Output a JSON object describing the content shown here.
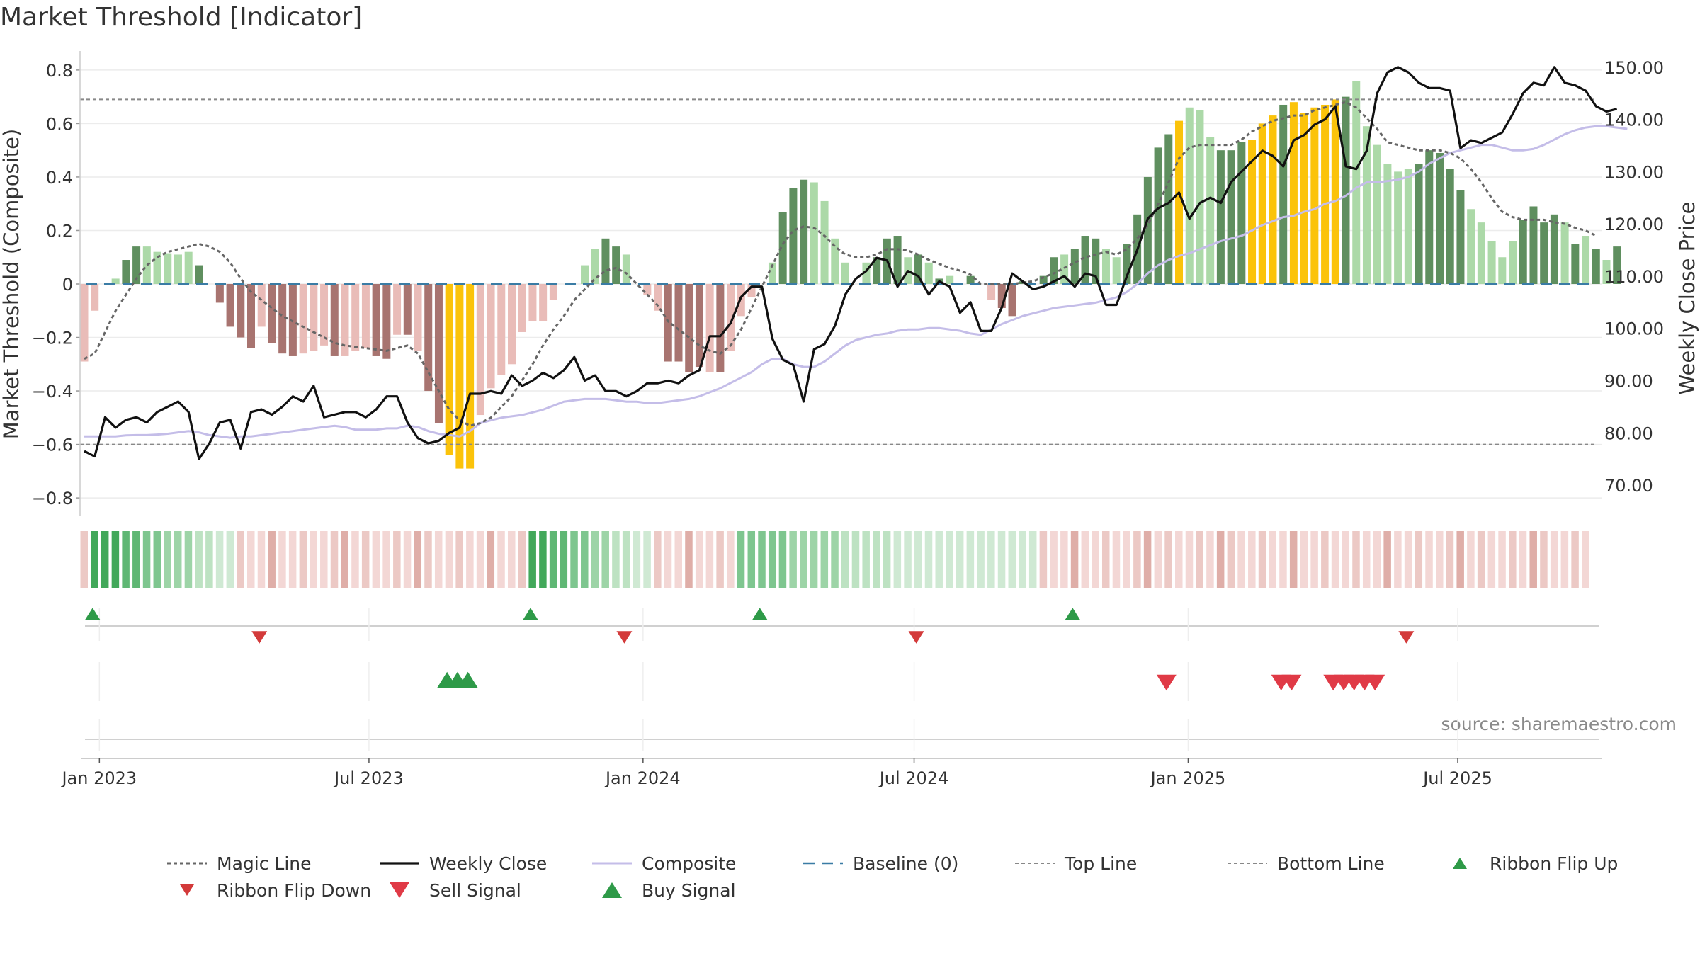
{
  "title": "Market Threshold [Indicator]",
  "source": "source: sharemaestro.com",
  "colors": {
    "bar_pos_strong": "#5f8f5f",
    "bar_pos_weak": "#acd9a8",
    "bar_neg_strong": "#a87470",
    "bar_neg_weak": "#e9bcb8",
    "bar_highlight": "#fbc30a",
    "weekly_close": "#111111",
    "composite": "#c4bde8",
    "magic_line": "#666666",
    "baseline": "#3a7ca5",
    "threshold_line": "#888888",
    "signal_up": "#2e9a48",
    "signal_down": "#d4343f"
  },
  "chart_data": {
    "type": "bar",
    "left_axis": {
      "label": "Market Threshold (Composite)",
      "ylim": [
        -0.85,
        0.85
      ],
      "ticks": [
        "0.8",
        "0.6",
        "0.4",
        "0.2",
        "0",
        "−0.2",
        "−0.4",
        "−0.6",
        "−0.8"
      ]
    },
    "right_axis": {
      "label": "Weekly Close Price",
      "ylim": [
        65,
        152
      ],
      "ticks": [
        "150.00",
        "140.00",
        "130.00",
        "120.00",
        "110.00",
        "100.00",
        "90.00",
        "80.00",
        "70.00"
      ]
    },
    "x_axis": {
      "range": [
        "2022-12-19",
        "2025-10-06"
      ],
      "ticks": [
        {
          "label": "Jan 2023",
          "date": "2023-01-01"
        },
        {
          "label": "Jul 2023",
          "date": "2023-07-01"
        },
        {
          "label": "Jan 2024",
          "date": "2024-01-01"
        },
        {
          "label": "Jul 2024",
          "date": "2024-07-01"
        },
        {
          "label": "Jan 2025",
          "date": "2025-01-01"
        },
        {
          "label": "Jul 2025",
          "date": "2025-07-01"
        }
      ]
    },
    "reference_lines": {
      "top_line": 0.69,
      "bottom_line": -0.6,
      "baseline": 0
    },
    "start_week": "2022-12-19",
    "composite_bars": [
      -0.29,
      -0.1,
      0.0,
      0.02,
      0.09,
      0.14,
      0.14,
      0.12,
      0.115,
      0.11,
      0.12,
      0.07,
      0.0,
      -0.07,
      -0.16,
      -0.2,
      -0.24,
      -0.16,
      -0.22,
      -0.26,
      -0.27,
      -0.26,
      -0.25,
      -0.23,
      -0.27,
      -0.27,
      -0.25,
      -0.24,
      -0.27,
      -0.28,
      -0.19,
      -0.19,
      -0.25,
      -0.4,
      -0.52,
      -0.64,
      -0.69,
      -0.69,
      -0.49,
      -0.39,
      -0.34,
      -0.3,
      -0.18,
      -0.14,
      -0.14,
      -0.06,
      0.0,
      0.0,
      0.07,
      0.13,
      0.17,
      0.14,
      0.11,
      0.0,
      -0.04,
      -0.1,
      -0.29,
      -0.29,
      -0.33,
      -0.31,
      -0.33,
      -0.33,
      -0.25,
      -0.12,
      -0.05,
      0.0,
      0.08,
      0.27,
      0.36,
      0.39,
      0.38,
      0.31,
      0.17,
      0.08,
      0.0,
      0.08,
      0.1,
      0.17,
      0.18,
      0.1,
      0.11,
      0.08,
      0.02,
      0.03,
      0.0,
      0.03,
      0.0,
      -0.06,
      -0.09,
      -0.12,
      0.01,
      0.0,
      0.03,
      0.1,
      0.11,
      0.13,
      0.18,
      0.17,
      0.13,
      0.1,
      0.15,
      0.26,
      0.4,
      0.51,
      0.56,
      0.61,
      0.66,
      0.65,
      0.55,
      0.5,
      0.5,
      0.53,
      0.54,
      0.6,
      0.63,
      0.67,
      0.68,
      0.64,
      0.66,
      0.67,
      0.69,
      0.7,
      0.76,
      0.59,
      0.52,
      0.45,
      0.42,
      0.43,
      0.45,
      0.5,
      0.49,
      0.43,
      0.35,
      0.28,
      0.23,
      0.16,
      0.1,
      0.16,
      0.24,
      0.29,
      0.23,
      0.26,
      0.23,
      0.15,
      0.18,
      0.13,
      0.09,
      0.14
    ],
    "highlight_weeks": [
      35,
      36,
      37,
      105,
      112,
      113,
      114,
      116,
      117,
      118,
      119,
      120
    ],
    "strong_weeks": [
      4,
      5,
      11,
      13,
      14,
      15,
      16,
      18,
      19,
      20,
      24,
      28,
      29,
      31,
      33,
      34,
      50,
      51,
      56,
      57,
      58,
      59,
      61,
      67,
      68,
      69,
      76,
      77,
      78,
      80,
      82,
      85,
      88,
      89,
      90,
      91,
      92,
      93,
      95,
      96,
      97,
      100,
      101,
      102,
      103,
      104,
      109,
      110,
      111,
      113,
      115,
      121,
      128,
      129,
      130,
      131,
      132,
      138,
      139,
      140,
      141,
      143,
      145,
      147
    ],
    "weekly_close": [
      76.5,
      75.5,
      83,
      81,
      82.5,
      83,
      82,
      84,
      85,
      86,
      84,
      75,
      78,
      82,
      82.5,
      77,
      84,
      84.5,
      83.5,
      85,
      87,
      86,
      89,
      83,
      83.5,
      84,
      84,
      83,
      84.5,
      87,
      87,
      82,
      79,
      78,
      78.5,
      80,
      81,
      87.5,
      87.5,
      88,
      87.5,
      91,
      89,
      90,
      91.5,
      90.5,
      92,
      94.5,
      90,
      91,
      88,
      88,
      87,
      88,
      89.5,
      89.5,
      90,
      89.5,
      91,
      92,
      98.5,
      98.5,
      101,
      106,
      108,
      108,
      98,
      94,
      93,
      86,
      96,
      97,
      100.5,
      106.5,
      109.5,
      111,
      113.5,
      113,
      108,
      111,
      110,
      106.5,
      109,
      108,
      103,
      105,
      99.5,
      99.5,
      104,
      110.5,
      109,
      107.5,
      108,
      109,
      110,
      108,
      110.5,
      110,
      104.5,
      104.5,
      110,
      115,
      121,
      123,
      124,
      126,
      121,
      124,
      125,
      124,
      128,
      130,
      132,
      134,
      133,
      131,
      136,
      137,
      139,
      140,
      142.5,
      131,
      130.5,
      134,
      145,
      149,
      150,
      149,
      147,
      146,
      146,
      145.5,
      134.5,
      136,
      135.5,
      136.5,
      137.5,
      141,
      145,
      147,
      146.5,
      150,
      147,
      146.5,
      145.5,
      142.5,
      141.5,
      142
    ],
    "composite_line": [
      -0.57,
      -0.57,
      -0.57,
      -0.57,
      -0.566,
      -0.565,
      -0.565,
      -0.563,
      -0.56,
      -0.555,
      -0.55,
      -0.555,
      -0.565,
      -0.57,
      -0.575,
      -0.57,
      -0.57,
      -0.565,
      -0.56,
      -0.555,
      -0.55,
      -0.545,
      -0.54,
      -0.535,
      -0.53,
      -0.535,
      -0.545,
      -0.545,
      -0.545,
      -0.54,
      -0.54,
      -0.53,
      -0.535,
      -0.55,
      -0.56,
      -0.565,
      -0.57,
      -0.55,
      -0.52,
      -0.51,
      -0.5,
      -0.495,
      -0.49,
      -0.48,
      -0.47,
      -0.455,
      -0.44,
      -0.435,
      -0.43,
      -0.43,
      -0.43,
      -0.435,
      -0.44,
      -0.44,
      -0.445,
      -0.445,
      -0.44,
      -0.435,
      -0.43,
      -0.42,
      -0.405,
      -0.39,
      -0.37,
      -0.35,
      -0.33,
      -0.3,
      -0.28,
      -0.28,
      -0.3,
      -0.31,
      -0.31,
      -0.29,
      -0.26,
      -0.23,
      -0.21,
      -0.2,
      -0.19,
      -0.185,
      -0.175,
      -0.17,
      -0.17,
      -0.165,
      -0.165,
      -0.17,
      -0.175,
      -0.185,
      -0.19,
      -0.17,
      -0.15,
      -0.135,
      -0.12,
      -0.11,
      -0.1,
      -0.09,
      -0.085,
      -0.08,
      -0.075,
      -0.07,
      -0.06,
      -0.05,
      -0.03,
      0.0,
      0.04,
      0.07,
      0.09,
      0.105,
      0.115,
      0.13,
      0.145,
      0.16,
      0.17,
      0.18,
      0.2,
      0.22,
      0.235,
      0.25,
      0.255,
      0.27,
      0.28,
      0.3,
      0.31,
      0.33,
      0.36,
      0.38,
      0.38,
      0.385,
      0.39,
      0.4,
      0.42,
      0.45,
      0.47,
      0.49,
      0.5,
      0.51,
      0.52,
      0.52,
      0.51,
      0.5,
      0.5,
      0.505,
      0.52,
      0.54,
      0.56,
      0.575,
      0.585,
      0.59,
      0.59,
      0.585,
      0.58
    ],
    "magic_line": [
      -0.28,
      -0.26,
      -0.18,
      -0.1,
      -0.04,
      0.02,
      0.07,
      0.1,
      0.12,
      0.13,
      0.14,
      0.15,
      0.14,
      0.12,
      0.08,
      0.02,
      -0.03,
      -0.06,
      -0.09,
      -0.12,
      -0.14,
      -0.16,
      -0.18,
      -0.2,
      -0.22,
      -0.23,
      -0.235,
      -0.24,
      -0.245,
      -0.25,
      -0.24,
      -0.23,
      -0.26,
      -0.33,
      -0.4,
      -0.47,
      -0.51,
      -0.53,
      -0.52,
      -0.5,
      -0.46,
      -0.42,
      -0.36,
      -0.3,
      -0.23,
      -0.17,
      -0.12,
      -0.06,
      -0.02,
      0.02,
      0.05,
      0.06,
      0.04,
      0.0,
      -0.04,
      -0.08,
      -0.14,
      -0.17,
      -0.2,
      -0.23,
      -0.25,
      -0.26,
      -0.23,
      -0.17,
      -0.09,
      -0.01,
      0.07,
      0.15,
      0.2,
      0.215,
      0.21,
      0.18,
      0.14,
      0.11,
      0.1,
      0.1,
      0.11,
      0.13,
      0.13,
      0.125,
      0.11,
      0.09,
      0.075,
      0.06,
      0.05,
      0.035,
      0.0,
      0.0,
      0.0,
      0.0,
      0.005,
      0.01,
      0.025,
      0.04,
      0.06,
      0.08,
      0.1,
      0.11,
      0.12,
      0.11,
      0.13,
      0.17,
      0.22,
      0.3,
      0.38,
      0.47,
      0.51,
      0.52,
      0.52,
      0.52,
      0.52,
      0.54,
      0.57,
      0.59,
      0.61,
      0.62,
      0.63,
      0.63,
      0.65,
      0.66,
      0.67,
      0.68,
      0.66,
      0.62,
      0.58,
      0.53,
      0.52,
      0.51,
      0.5,
      0.5,
      0.5,
      0.49,
      0.47,
      0.43,
      0.38,
      0.32,
      0.27,
      0.25,
      0.24,
      0.24,
      0.24,
      0.23,
      0.225,
      0.21,
      0.2,
      0.18
    ],
    "ribbon": {
      "segments": [
        {
          "start": 0,
          "end": 0,
          "kind": "neg"
        },
        {
          "start": 1,
          "end": 14,
          "kind": "pos"
        },
        {
          "start": 15,
          "end": 42,
          "kind": "neg"
        },
        {
          "start": 43,
          "end": 54,
          "kind": "pos"
        },
        {
          "start": 55,
          "end": 62,
          "kind": "neg"
        },
        {
          "start": 63,
          "end": 91,
          "kind": "pos"
        },
        {
          "start": 92,
          "end": 121,
          "kind": "neg"
        },
        {
          "start": 122,
          "end": 144,
          "kind": "neg"
        }
      ]
    },
    "ribbon_flip_up": [
      "2022-12-26",
      "2023-10-16",
      "2024-03-18",
      "2024-10-14"
    ],
    "ribbon_flip_down": [
      "2023-04-17",
      "2023-12-18",
      "2024-07-01",
      "2025-05-26"
    ],
    "buy_signal": [
      "2023-08-21",
      "2023-08-28",
      "2023-09-04"
    ],
    "sell_signal": [
      "2024-12-16",
      "2025-03-03",
      "2025-03-10",
      "2025-04-07",
      "2025-04-14",
      "2025-04-21",
      "2025-04-28",
      "2025-05-05"
    ],
    "legend": {
      "placement": "bottom",
      "entries": [
        {
          "name": "Magic Line",
          "kind": "magic"
        },
        {
          "name": "Weekly Close",
          "kind": "close"
        },
        {
          "name": "Composite",
          "kind": "composite"
        },
        {
          "name": "Baseline (0)",
          "kind": "baseline"
        },
        {
          "name": "Top Line",
          "kind": "top"
        },
        {
          "name": "Bottom Line",
          "kind": "bottom"
        },
        {
          "name": "Ribbon Flip Up",
          "kind": "flip-up"
        },
        {
          "name": "Ribbon Flip Down",
          "kind": "flip-down"
        },
        {
          "name": "Sell Signal",
          "kind": "sell"
        },
        {
          "name": "Buy Signal",
          "kind": "buy"
        }
      ]
    }
  }
}
